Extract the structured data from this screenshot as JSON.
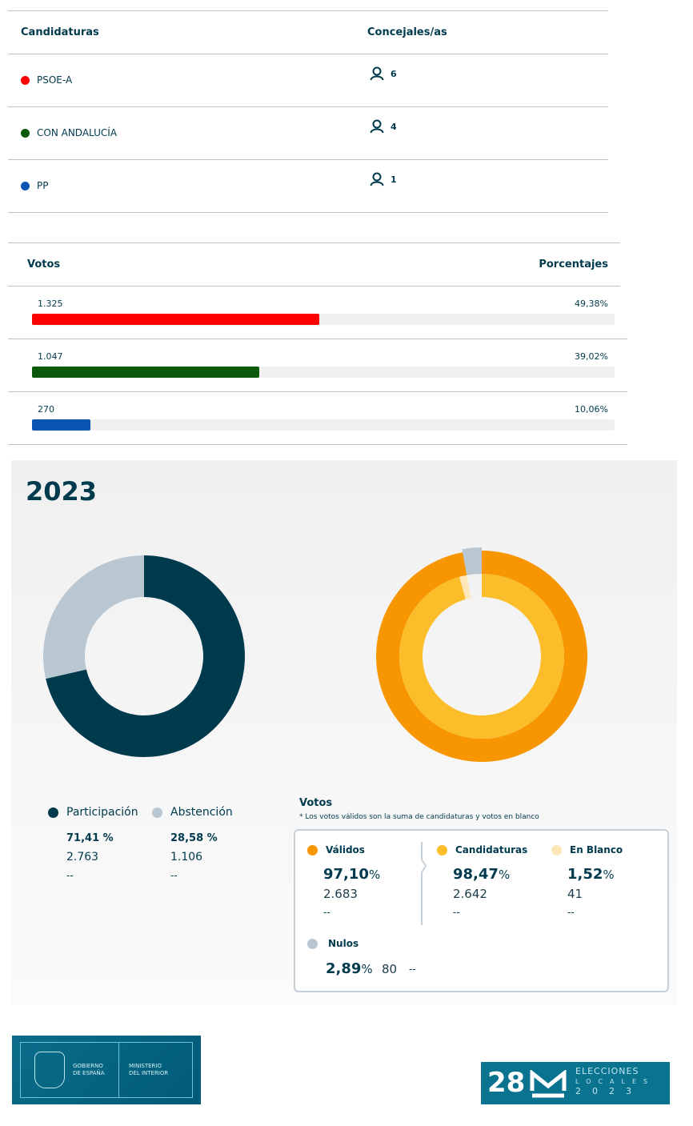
{
  "seats_table": {
    "headers": {
      "candidaturas": "Candidaturas",
      "concejales": "Concejales/as"
    },
    "rows": [
      {
        "name": "PSOE-A",
        "color": "#ff0000",
        "seats": "6"
      },
      {
        "name": "CON ANDALUCÍA",
        "color": "#0b5a0b",
        "seats": "4"
      },
      {
        "name": "PP",
        "color": "#0a56b5",
        "seats": "1"
      }
    ],
    "seat_icon": "person-icon"
  },
  "votes_table": {
    "headers": {
      "votos": "Votos",
      "porcentajes": "Porcentajes"
    },
    "rows": [
      {
        "votes": "1.325",
        "pct_label": "49,38%",
        "pct": 49.38,
        "color": "#ff0000"
      },
      {
        "votes": "1.047",
        "pct_label": "39,02%",
        "pct": 39.02,
        "color": "#0b5a0b"
      },
      {
        "votes": "270",
        "pct_label": "10,06%",
        "pct": 10.06,
        "color": "#0a56b5"
      }
    ]
  },
  "year": "2023",
  "participation": {
    "items": [
      {
        "label": "Participación",
        "pct_label": "71,41 %",
        "pct": 71.41,
        "count": "2.763",
        "extra": "--",
        "color": "#003a4d"
      },
      {
        "label": "Abstención",
        "pct_label": "28,58 %",
        "pct": 28.58,
        "count": "1.106",
        "extra": "--",
        "color": "#b9c7d3"
      }
    ]
  },
  "votos": {
    "title": "Votos",
    "note": "* Los votos válidos son la suma de candidaturas y votos en blanco",
    "validos": {
      "label": "Válidos",
      "pct_num": "97,10",
      "pct": 97.1,
      "pct_sign": "%",
      "count": "2.683",
      "extra": "--",
      "color": "#f79600"
    },
    "candidaturas": {
      "label": "Candidaturas",
      "pct_num": "98,47",
      "pct": 98.47,
      "pct_sign": "%",
      "count": "2.642",
      "extra": "--",
      "color": "#fbbd2a"
    },
    "blanco": {
      "label": "En Blanco",
      "pct_num": "1,52",
      "pct": 1.52,
      "pct_sign": "%",
      "count": "41",
      "extra": "--",
      "color": "#fde7b8"
    },
    "nulos": {
      "label": "Nulos",
      "pct_num": "2,89",
      "pct": 2.89,
      "pct_sign": "%",
      "count": "80",
      "extra": "--",
      "color": "#b9c7d3"
    }
  },
  "footer": {
    "gov_logo": "GOBIERNO DE ESPAÑA MINISTERIO DEL INTERIOR",
    "election_logo": "28M ELECCIONES LOCALES 2023"
  }
}
